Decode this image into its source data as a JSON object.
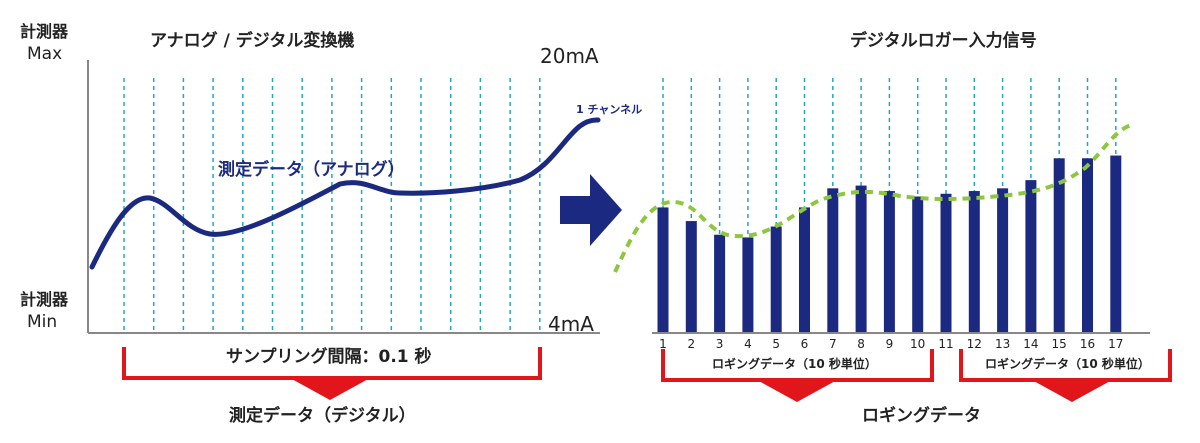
{
  "left_panel": {
    "title": "アナログ / デジタル変換機",
    "y_max_label_line1": "計測器",
    "y_max_label_line2": "Max",
    "y_min_label_line1": "計測器",
    "y_min_label_line2": "Min",
    "top_value": "20mA",
    "bottom_value": "4mA",
    "channel_label": "1 チャンネル",
    "curve_label": "測定データ（アナログ）",
    "sampling_label": "サンプリング間隔：0.1 秒",
    "digital_label": "測定データ（デジタル）",
    "curve_color": "#1b2a80",
    "sample_line_color": "#1fa7c8"
  },
  "arrow_color": "#1b2a80",
  "right_panel": {
    "title": "デジタルロガー入力信号",
    "bar_color": "#1b2a80",
    "trend_color": "#8dc63f",
    "group1_label": "ロギングデータ（10 秒単位）",
    "group2_label": "ロギングデータ（10 秒単位）",
    "logging_label": "ロギングデータ",
    "bracket_color": "#e0161b"
  },
  "chart_data": {
    "type": "bar",
    "categories": [
      "1",
      "2",
      "3",
      "4",
      "5",
      "6",
      "7",
      "8",
      "9",
      "10",
      "11",
      "12",
      "13",
      "14",
      "15",
      "16",
      "17"
    ],
    "values": [
      46,
      41,
      36,
      35,
      39,
      46,
      53,
      54,
      52,
      50,
      51,
      52,
      53,
      56,
      64,
      64,
      65
    ],
    "ylim": [
      0,
      100
    ]
  }
}
